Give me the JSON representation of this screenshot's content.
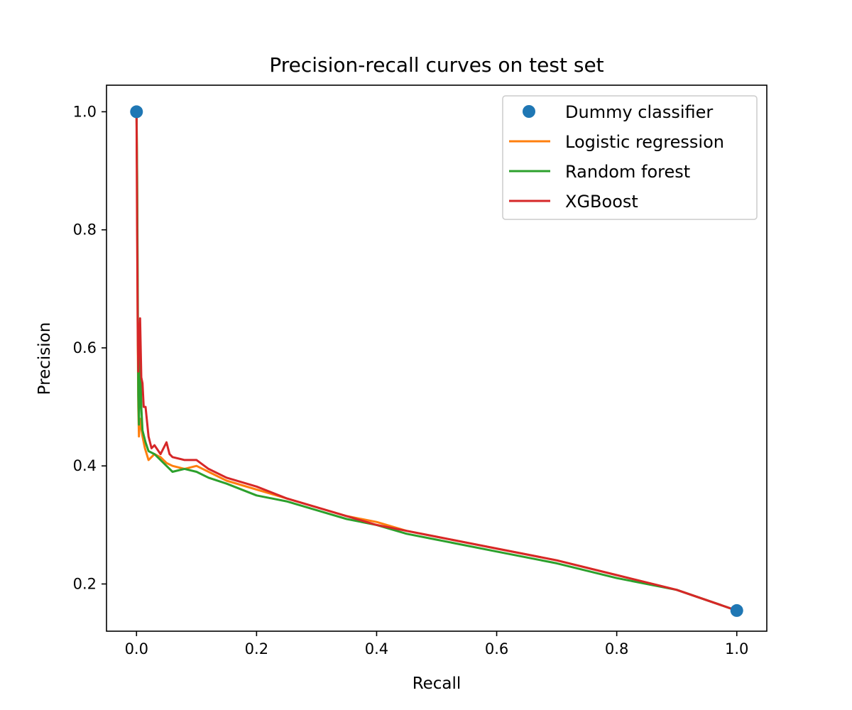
{
  "chart_data": {
    "type": "line",
    "title": "Precision-recall curves on test set",
    "xlabel": "Recall",
    "ylabel": "Precision",
    "xlim": [
      -0.05,
      1.05
    ],
    "ylim": [
      0.12,
      1.045
    ],
    "xticks": [
      0.0,
      0.2,
      0.4,
      0.6,
      0.8,
      1.0
    ],
    "xtick_labels": [
      "0.0",
      "0.2",
      "0.4",
      "0.6",
      "0.8",
      "1.0"
    ],
    "yticks": [
      0.2,
      0.4,
      0.6,
      0.8,
      1.0
    ],
    "ytick_labels": [
      "0.2",
      "0.4",
      "0.6",
      "0.8",
      "1.0"
    ],
    "grid": false,
    "legend_position": "top-right",
    "series": [
      {
        "name": "Dummy classifier",
        "kind": "points",
        "color": "#1f77b4",
        "x": [
          0.0,
          1.0
        ],
        "y": [
          1.0,
          0.155
        ]
      },
      {
        "name": "Logistic regression",
        "kind": "line",
        "color": "#ff7f0e",
        "x": [
          0.0,
          0.001,
          0.002,
          0.003,
          0.004,
          0.006,
          0.01,
          0.014,
          0.02,
          0.03,
          0.04,
          0.05,
          0.06,
          0.08,
          0.1,
          0.12,
          0.15,
          0.2,
          0.25,
          0.3,
          0.35,
          0.4,
          0.45,
          0.5,
          0.6,
          0.7,
          0.8,
          0.9,
          1.0
        ],
        "y": [
          1.0,
          0.9,
          0.62,
          0.5,
          0.45,
          0.48,
          0.45,
          0.43,
          0.41,
          0.42,
          0.415,
          0.405,
          0.4,
          0.395,
          0.4,
          0.39,
          0.375,
          0.36,
          0.345,
          0.33,
          0.315,
          0.305,
          0.29,
          0.28,
          0.26,
          0.24,
          0.215,
          0.19,
          0.155
        ]
      },
      {
        "name": "Random forest",
        "kind": "line",
        "color": "#2ca02c",
        "x": [
          0.0,
          0.001,
          0.002,
          0.003,
          0.004,
          0.006,
          0.008,
          0.01,
          0.015,
          0.02,
          0.03,
          0.04,
          0.05,
          0.06,
          0.08,
          0.1,
          0.12,
          0.15,
          0.2,
          0.25,
          0.3,
          0.35,
          0.4,
          0.45,
          0.5,
          0.6,
          0.7,
          0.8,
          0.9,
          1.0
        ],
        "y": [
          1.0,
          0.89,
          0.7,
          0.52,
          0.47,
          0.59,
          0.5,
          0.46,
          0.44,
          0.425,
          0.42,
          0.41,
          0.4,
          0.39,
          0.395,
          0.39,
          0.38,
          0.37,
          0.35,
          0.34,
          0.325,
          0.31,
          0.3,
          0.285,
          0.275,
          0.255,
          0.235,
          0.21,
          0.19,
          0.155
        ]
      },
      {
        "name": "XGBoost",
        "kind": "line",
        "color": "#d62728",
        "x": [
          0.0,
          0.001,
          0.002,
          0.003,
          0.004,
          0.006,
          0.008,
          0.01,
          0.012,
          0.015,
          0.02,
          0.025,
          0.03,
          0.04,
          0.05,
          0.055,
          0.06,
          0.08,
          0.1,
          0.12,
          0.15,
          0.2,
          0.25,
          0.3,
          0.35,
          0.4,
          0.45,
          0.5,
          0.6,
          0.7,
          0.8,
          0.9,
          1.0
        ],
        "y": [
          1.0,
          0.8,
          0.63,
          0.56,
          0.6,
          0.65,
          0.55,
          0.54,
          0.5,
          0.5,
          0.45,
          0.43,
          0.435,
          0.42,
          0.44,
          0.42,
          0.415,
          0.41,
          0.41,
          0.395,
          0.38,
          0.365,
          0.345,
          0.33,
          0.315,
          0.3,
          0.29,
          0.28,
          0.26,
          0.24,
          0.215,
          0.19,
          0.155
        ]
      }
    ]
  }
}
